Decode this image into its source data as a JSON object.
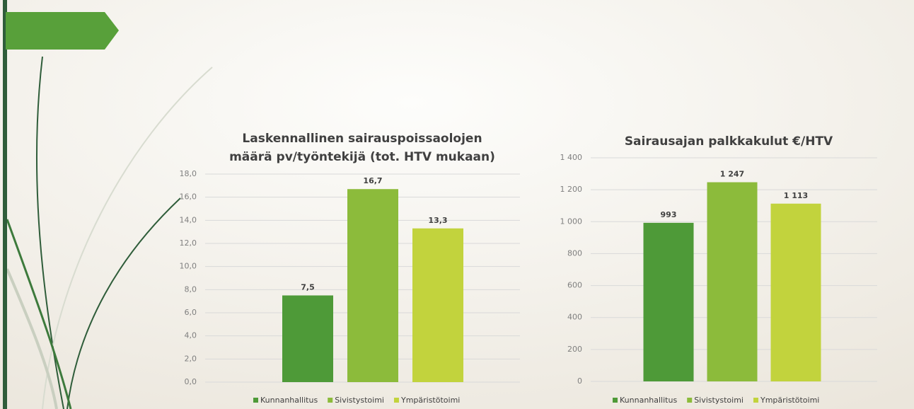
{
  "chart_data": [
    {
      "type": "bar",
      "title": [
        "Laskennallinen sairauspoissaolojen",
        "määrä pv/työntekijä (tot. HTV mukaan)"
      ],
      "categories": [
        null
      ],
      "series": [
        {
          "name": "Kunnanhallitus",
          "color": "#4e9a38",
          "values": [
            7.5
          ],
          "value_labels": [
            "7,5"
          ]
        },
        {
          "name": "Sivistystoimi",
          "color": "#8cbb3b",
          "values": [
            16.7
          ],
          "value_labels": [
            "16,7"
          ]
        },
        {
          "name": "Ympäristötoimi",
          "color": "#c2d33d",
          "values": [
            13.3
          ],
          "value_labels": [
            "13,3"
          ]
        }
      ],
      "ylim": [
        0,
        18
      ],
      "yticks": [
        {
          "value": 0,
          "label": "0,0"
        },
        {
          "value": 2,
          "label": "2,0"
        },
        {
          "value": 4,
          "label": "4,0"
        },
        {
          "value": 6,
          "label": "6,0"
        },
        {
          "value": 8,
          "label": "8,0"
        },
        {
          "value": 10,
          "label": "10,0"
        },
        {
          "value": 12,
          "label": "12,0"
        },
        {
          "value": 14,
          "label": "14,0"
        },
        {
          "value": 16,
          "label": "16,0"
        },
        {
          "value": 18,
          "label": "18,0"
        }
      ],
      "grid": true,
      "legend": "bottom"
    },
    {
      "type": "bar",
      "title": [
        "Sairausajan palkkakulut €/HTV"
      ],
      "categories": [
        null
      ],
      "series": [
        {
          "name": "Kunnanhallitus",
          "color": "#4e9a38",
          "values": [
            993
          ]
        },
        {
          "name": "Sivistystoimi",
          "color": "#8cbb3b",
          "values": [
            1247
          ],
          "value_labels": [
            "1 247"
          ]
        },
        {
          "name": "Ympäristötoimi",
          "color": "#c2d33d",
          "values": [
            1113
          ],
          "value_labels": [
            "1 113"
          ]
        }
      ],
      "ylim": [
        0,
        1400
      ],
      "yticks": [
        0,
        200,
        400,
        600,
        800,
        {
          "value": 1000,
          "label": "1 000"
        },
        {
          "value": 1200,
          "label": "1 200"
        },
        {
          "value": 1400,
          "label": "1 400"
        }
      ],
      "grid": true,
      "legend": "bottom"
    }
  ]
}
